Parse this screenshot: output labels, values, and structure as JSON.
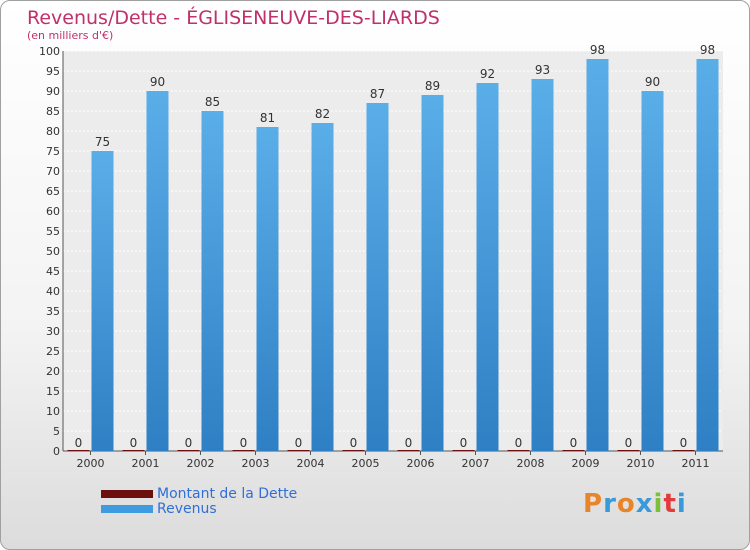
{
  "title": "Revenus/Dette - ÉGLISENEUVE-DES-LIARDS",
  "subtitle": "(en milliers d'€)",
  "colors": {
    "revenus": "#3f9be0",
    "dette": "#6b0f0f",
    "title": "#c0306a",
    "legend_text": "#2f6fd6"
  },
  "chart_data": {
    "type": "bar",
    "categories": [
      "2000",
      "2001",
      "2002",
      "2003",
      "2004",
      "2005",
      "2006",
      "2007",
      "2008",
      "2009",
      "2010",
      "2011"
    ],
    "series": [
      {
        "name": "Montant de la Dette",
        "values": [
          0,
          0,
          0,
          0,
          0,
          0,
          0,
          0,
          0,
          0,
          0,
          0
        ]
      },
      {
        "name": "Revenus",
        "values": [
          75,
          90,
          85,
          81,
          82,
          87,
          89,
          92,
          93,
          98,
          90,
          98
        ]
      }
    ],
    "ylim": [
      0,
      100
    ],
    "ytick_step": 5,
    "grid": true,
    "legend_position": "bottom-left"
  },
  "legend": [
    {
      "label": "Montant de la Dette"
    },
    {
      "label": "Revenus"
    }
  ],
  "logo": {
    "text": "Proxiti"
  }
}
